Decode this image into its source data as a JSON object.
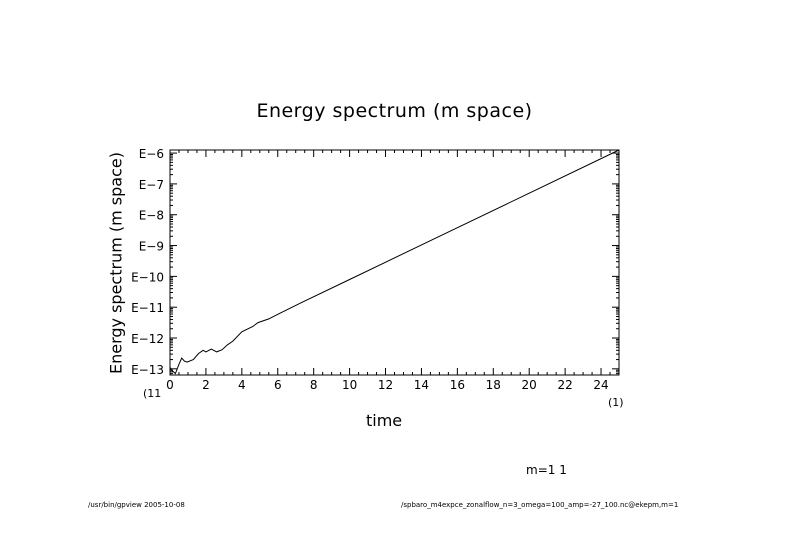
{
  "chart_data": {
    "type": "line",
    "title": "Energy spectrum (m space)",
    "xlabel": "time",
    "ylabel": "Energy spectrum (m space)",
    "xlim": [
      0,
      25
    ],
    "ylim_log10": [
      -13.2,
      -5.9
    ],
    "yscale": "log",
    "x_ticks": [
      0,
      2,
      4,
      6,
      8,
      10,
      12,
      14,
      16,
      18,
      20,
      22,
      24
    ],
    "y_ticks": [
      {
        "exp": -6,
        "label": "E−6"
      },
      {
        "exp": -7,
        "label": "E−7"
      },
      {
        "exp": -8,
        "label": "E−8"
      },
      {
        "exp": -9,
        "label": "E−9"
      },
      {
        "exp": -10,
        "label": "E−10"
      },
      {
        "exp": -11,
        "label": "E−11"
      },
      {
        "exp": -12,
        "label": "E−12"
      },
      {
        "exp": -13,
        "label": "E−13"
      }
    ],
    "grid": false,
    "series": [
      {
        "x": [
          0,
          0.1,
          0.3,
          0.5,
          0.65,
          0.8,
          0.95,
          1.3,
          1.6,
          1.85,
          2.0,
          2.3,
          2.6,
          2.9,
          3.2,
          3.5,
          4.0,
          4.6,
          4.9,
          5.5,
          6.0,
          7.35,
          10,
          15,
          20,
          25
        ],
        "log10_y": [
          -12.95,
          -13.05,
          -13.15,
          -12.85,
          -12.65,
          -12.75,
          -12.78,
          -12.7,
          -12.5,
          -12.4,
          -12.45,
          -12.36,
          -12.45,
          -12.38,
          -12.22,
          -12.1,
          -11.8,
          -11.63,
          -11.5,
          -11.38,
          -11.23,
          -10.84,
          -10.1,
          -8.7,
          -7.3,
          -5.9
        ]
      }
    ],
    "color": "#000000"
  },
  "labels": {
    "x_left": "(11",
    "x_right": "(1)",
    "note": "m=1 1",
    "footer_left": "/usr/bin/gpview  2005-10-08",
    "footer_right": "/spbaro_m4expce_zonalflow_n=3_omega=100_amp=-27_100.nc@ekepm,m=1"
  }
}
